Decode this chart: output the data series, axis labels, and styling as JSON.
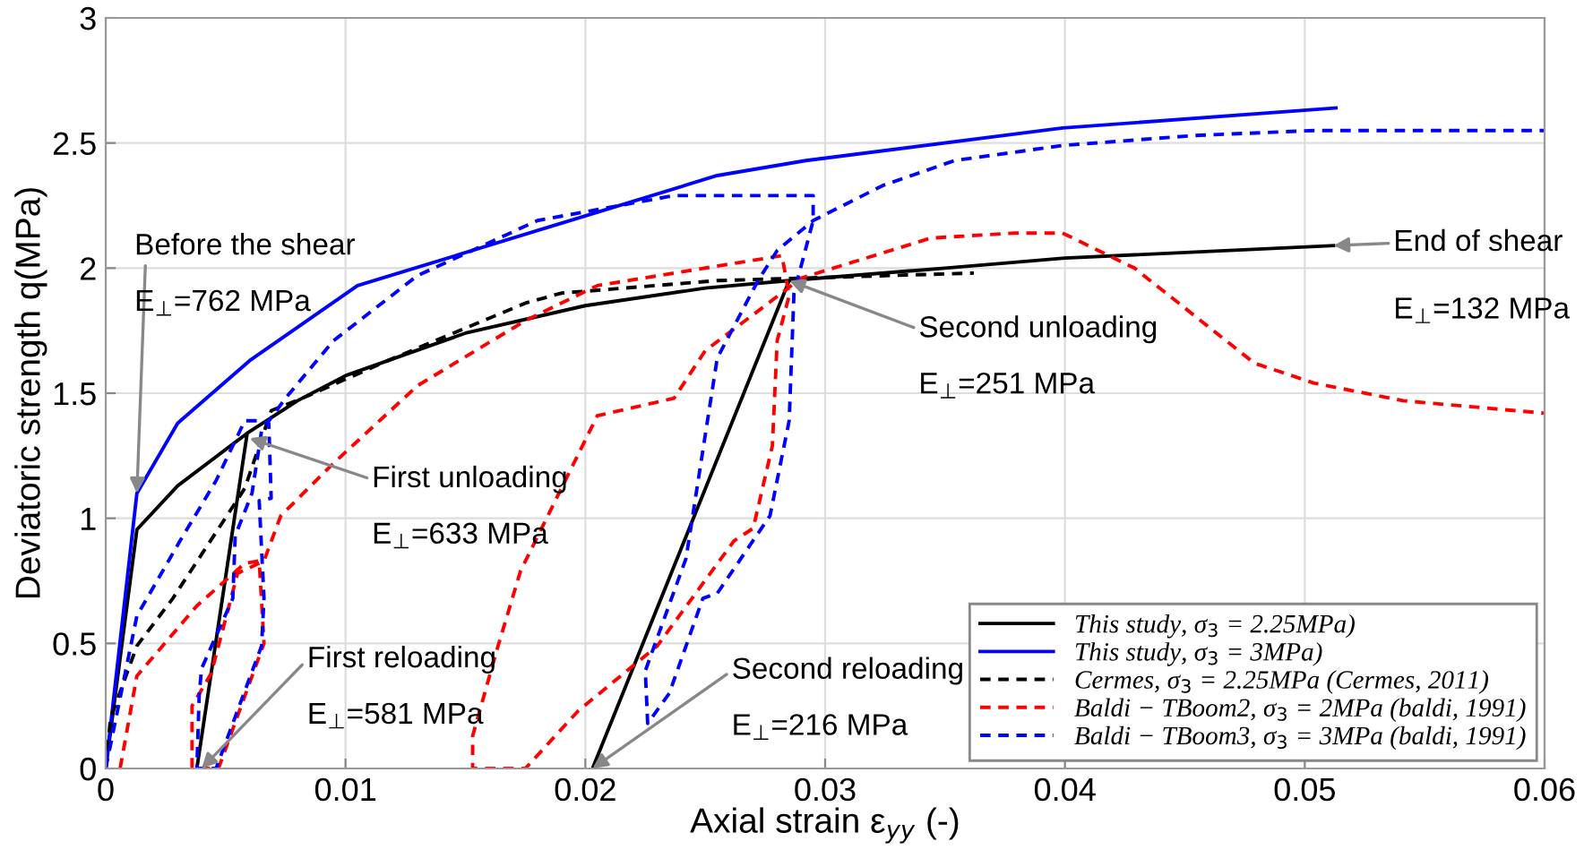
{
  "chart_data": {
    "type": "line",
    "xlabel": "Axial strain ε$_{yy}$ (-)",
    "ylabel": "Deviatoric strength q(MPa)",
    "xlim": [
      0,
      0.06
    ],
    "ylim": [
      0,
      3
    ],
    "xticks": [
      0,
      0.01,
      0.02,
      0.03,
      0.04,
      0.05,
      0.06
    ],
    "yticks": [
      0,
      0.5,
      1,
      1.5,
      2,
      2.5,
      3
    ],
    "grid": true,
    "legend": "bottom right",
    "series": [
      {
        "name": "This study, σ$_{3}$ = 2.25MPa)",
        "color": "#000000",
        "line_style": "solid",
        "x": [
          0,
          0.0013,
          0.003,
          0.0059,
          0.0038,
          0.0059,
          0.008,
          0.01,
          0.015,
          0.02,
          0.025,
          0.0285,
          0.0203,
          0.0285,
          0.035,
          0.04,
          0.0512
        ],
        "values": [
          0,
          0.955,
          1.13,
          1.34,
          0,
          1.34,
          1.47,
          1.57,
          1.74,
          1.85,
          1.92,
          1.95,
          0,
          1.95,
          2.0,
          2.04,
          2.09
        ]
      },
      {
        "name": "This study, σ$_{3}$ = 3MPa)",
        "color": "#0000ff",
        "line_style": "solid",
        "x": [
          0,
          0.0013,
          0.003,
          0.006,
          0.0105,
          0.018,
          0.0255,
          0.0292,
          0.0399,
          0.0513
        ],
        "values": [
          0,
          1.1,
          1.38,
          1.63,
          1.93,
          2.15,
          2.37,
          2.43,
          2.56,
          2.64
        ]
      },
      {
        "name": "Cermes, σ$_{3}$ = 2.25MPa (Cermes, 2011)",
        "color": "#000000",
        "line_style": "dashed",
        "x": [
          0,
          0.0002,
          0.0013,
          0.0028,
          0.0058,
          0.0069,
          0.0082,
          0.012,
          0.0175,
          0.019,
          0.0255,
          0.0362
        ],
        "values": [
          0,
          0.2,
          0.49,
          0.68,
          1.12,
          1.43,
          1.48,
          1.64,
          1.86,
          1.9,
          1.95,
          1.98
        ]
      },
      {
        "name": "Baldi − TBoom2, σ$_{3}$ = 2MPa (baldi, 1991)",
        "color": "#ff0000",
        "line_style": "dashed",
        "x": [
          0.0006,
          0.0013,
          0.0038,
          0.0058,
          0.0064,
          0.0066,
          0.0047,
          0.0036,
          0.0036,
          0.0044,
          0.0055,
          0.0066,
          0.0073,
          0.0095,
          0.013,
          0.0175,
          0.0205,
          0.0282,
          0.0285,
          0.028,
          0.0278,
          0.027,
          0.0262,
          0.023,
          0.0197,
          0.0175,
          0.0153,
          0.0153,
          0.0163,
          0.0173,
          0.0205,
          0.0237,
          0.025,
          0.0275,
          0.029,
          0.0344,
          0.0379,
          0.0399,
          0.0429,
          0.0479,
          0.0504,
          0.0541,
          0.06
        ],
        "values": [
          0,
          0.37,
          0.65,
          0.82,
          0.83,
          0.5,
          0,
          0,
          0.25,
          0.38,
          0.78,
          0.83,
          1.01,
          1.22,
          1.53,
          1.79,
          1.93,
          2.05,
          1.89,
          1.71,
          1.29,
          0.96,
          0.91,
          0.49,
          0.23,
          0,
          0,
          0.13,
          0.47,
          0.79,
          1.41,
          1.48,
          1.67,
          1.85,
          1.96,
          2.12,
          2.14,
          2.14,
          2.0,
          1.62,
          1.54,
          1.47,
          1.42
        ]
      },
      {
        "name": "Baldi − TBoom3, σ$_{3}$ = 3MPa (baldi, 1991)",
        "color": "#0000ff",
        "line_style": "dashed",
        "x": [
          0,
          0.0013,
          0.0031,
          0.0046,
          0.0058,
          0.0064,
          0.0068,
          0.0069,
          0.0064,
          0.0066,
          0.0065,
          0.0046,
          0.0038,
          0.0039,
          0.004,
          0.0053,
          0.0054,
          0.0061,
          0.0065,
          0.0075,
          0.0095,
          0.013,
          0.018,
          0.0237,
          0.0295,
          0.0295,
          0.0287,
          0.0285,
          0.0277,
          0.0255,
          0.0249,
          0.0235,
          0.0226,
          0.0225,
          0.0242,
          0.0255,
          0.0272,
          0.028,
          0.0295,
          0.0324,
          0.0354,
          0.0399,
          0.0454,
          0.0504,
          0.06
        ],
        "values": [
          0,
          0.61,
          0.91,
          1.15,
          1.39,
          1.39,
          1.38,
          1.08,
          1.07,
          0.68,
          0.49,
          0,
          0,
          0.3,
          0.4,
          0.68,
          0.93,
          1.1,
          1.35,
          1.48,
          1.71,
          1.97,
          2.19,
          2.29,
          2.29,
          2.19,
          1.9,
          1.39,
          1.01,
          0.7,
          0.68,
          0.3,
          0.18,
          0.39,
          0.84,
          1.64,
          1.95,
          2.07,
          2.19,
          2.33,
          2.43,
          2.49,
          2.53,
          2.55,
          2.55
        ]
      }
    ],
    "annotations": [
      {
        "text": "Before the shear",
        "x": 0.0013,
        "y": 1.1
      },
      "E$_{⊥}$=762 MPa",
      {
        "text": "First unloading",
        "x": 0.006,
        "y": 1.32
      },
      "E$_{⊥}$=633 MPa",
      {
        "text": "First reloading",
        "x": 0.004,
        "y": 0.0
      },
      "E$_{⊥}$=581 MPa",
      {
        "text": "Second reloading",
        "x": 0.0203,
        "y": 0
      },
      "E$_{⊥}$=216 MPa",
      {
        "text": "Second unloading",
        "x": 0.0285,
        "y": 1.95
      },
      "E$_{⊥}$=251 MPa",
      {
        "text": "End of shear",
        "x": 0.0512,
        "y": 2.09
      },
      "E$_{⊥}$=132 MPa"
    ]
  }
}
